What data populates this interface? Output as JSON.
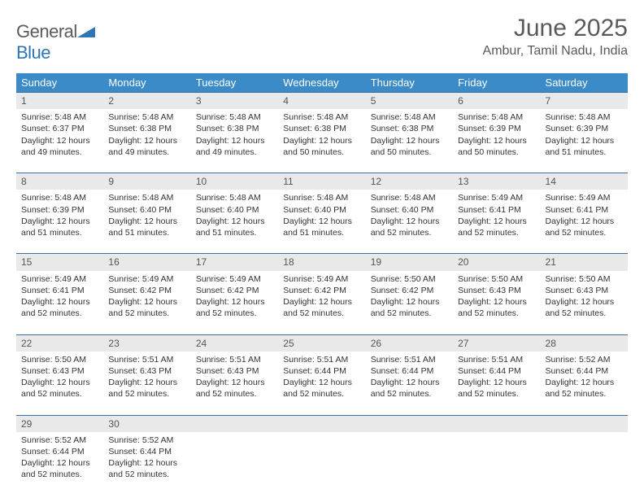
{
  "logo": {
    "word1": "General",
    "word2": "Blue"
  },
  "title": "June 2025",
  "location": "Ambur, Tamil Nadu, India",
  "colors": {
    "header_bg": "#3b8bc9",
    "header_text": "#ffffff",
    "row_border": "#3b6fa0",
    "daynum_bg": "#e9e9e9",
    "text": "#333333",
    "title_text": "#5a5a5a",
    "logo_blue": "#2e75b6"
  },
  "weekdays": [
    "Sunday",
    "Monday",
    "Tuesday",
    "Wednesday",
    "Thursday",
    "Friday",
    "Saturday"
  ],
  "weeks": [
    [
      {
        "n": "1",
        "sr": "Sunrise: 5:48 AM",
        "ss": "Sunset: 6:37 PM",
        "d1": "Daylight: 12 hours",
        "d2": "and 49 minutes."
      },
      {
        "n": "2",
        "sr": "Sunrise: 5:48 AM",
        "ss": "Sunset: 6:38 PM",
        "d1": "Daylight: 12 hours",
        "d2": "and 49 minutes."
      },
      {
        "n": "3",
        "sr": "Sunrise: 5:48 AM",
        "ss": "Sunset: 6:38 PM",
        "d1": "Daylight: 12 hours",
        "d2": "and 49 minutes."
      },
      {
        "n": "4",
        "sr": "Sunrise: 5:48 AM",
        "ss": "Sunset: 6:38 PM",
        "d1": "Daylight: 12 hours",
        "d2": "and 50 minutes."
      },
      {
        "n": "5",
        "sr": "Sunrise: 5:48 AM",
        "ss": "Sunset: 6:38 PM",
        "d1": "Daylight: 12 hours",
        "d2": "and 50 minutes."
      },
      {
        "n": "6",
        "sr": "Sunrise: 5:48 AM",
        "ss": "Sunset: 6:39 PM",
        "d1": "Daylight: 12 hours",
        "d2": "and 50 minutes."
      },
      {
        "n": "7",
        "sr": "Sunrise: 5:48 AM",
        "ss": "Sunset: 6:39 PM",
        "d1": "Daylight: 12 hours",
        "d2": "and 51 minutes."
      }
    ],
    [
      {
        "n": "8",
        "sr": "Sunrise: 5:48 AM",
        "ss": "Sunset: 6:39 PM",
        "d1": "Daylight: 12 hours",
        "d2": "and 51 minutes."
      },
      {
        "n": "9",
        "sr": "Sunrise: 5:48 AM",
        "ss": "Sunset: 6:40 PM",
        "d1": "Daylight: 12 hours",
        "d2": "and 51 minutes."
      },
      {
        "n": "10",
        "sr": "Sunrise: 5:48 AM",
        "ss": "Sunset: 6:40 PM",
        "d1": "Daylight: 12 hours",
        "d2": "and 51 minutes."
      },
      {
        "n": "11",
        "sr": "Sunrise: 5:48 AM",
        "ss": "Sunset: 6:40 PM",
        "d1": "Daylight: 12 hours",
        "d2": "and 51 minutes."
      },
      {
        "n": "12",
        "sr": "Sunrise: 5:48 AM",
        "ss": "Sunset: 6:40 PM",
        "d1": "Daylight: 12 hours",
        "d2": "and 52 minutes."
      },
      {
        "n": "13",
        "sr": "Sunrise: 5:49 AM",
        "ss": "Sunset: 6:41 PM",
        "d1": "Daylight: 12 hours",
        "d2": "and 52 minutes."
      },
      {
        "n": "14",
        "sr": "Sunrise: 5:49 AM",
        "ss": "Sunset: 6:41 PM",
        "d1": "Daylight: 12 hours",
        "d2": "and 52 minutes."
      }
    ],
    [
      {
        "n": "15",
        "sr": "Sunrise: 5:49 AM",
        "ss": "Sunset: 6:41 PM",
        "d1": "Daylight: 12 hours",
        "d2": "and 52 minutes."
      },
      {
        "n": "16",
        "sr": "Sunrise: 5:49 AM",
        "ss": "Sunset: 6:42 PM",
        "d1": "Daylight: 12 hours",
        "d2": "and 52 minutes."
      },
      {
        "n": "17",
        "sr": "Sunrise: 5:49 AM",
        "ss": "Sunset: 6:42 PM",
        "d1": "Daylight: 12 hours",
        "d2": "and 52 minutes."
      },
      {
        "n": "18",
        "sr": "Sunrise: 5:49 AM",
        "ss": "Sunset: 6:42 PM",
        "d1": "Daylight: 12 hours",
        "d2": "and 52 minutes."
      },
      {
        "n": "19",
        "sr": "Sunrise: 5:50 AM",
        "ss": "Sunset: 6:42 PM",
        "d1": "Daylight: 12 hours",
        "d2": "and 52 minutes."
      },
      {
        "n": "20",
        "sr": "Sunrise: 5:50 AM",
        "ss": "Sunset: 6:43 PM",
        "d1": "Daylight: 12 hours",
        "d2": "and 52 minutes."
      },
      {
        "n": "21",
        "sr": "Sunrise: 5:50 AM",
        "ss": "Sunset: 6:43 PM",
        "d1": "Daylight: 12 hours",
        "d2": "and 52 minutes."
      }
    ],
    [
      {
        "n": "22",
        "sr": "Sunrise: 5:50 AM",
        "ss": "Sunset: 6:43 PM",
        "d1": "Daylight: 12 hours",
        "d2": "and 52 minutes."
      },
      {
        "n": "23",
        "sr": "Sunrise: 5:51 AM",
        "ss": "Sunset: 6:43 PM",
        "d1": "Daylight: 12 hours",
        "d2": "and 52 minutes."
      },
      {
        "n": "24",
        "sr": "Sunrise: 5:51 AM",
        "ss": "Sunset: 6:43 PM",
        "d1": "Daylight: 12 hours",
        "d2": "and 52 minutes."
      },
      {
        "n": "25",
        "sr": "Sunrise: 5:51 AM",
        "ss": "Sunset: 6:44 PM",
        "d1": "Daylight: 12 hours",
        "d2": "and 52 minutes."
      },
      {
        "n": "26",
        "sr": "Sunrise: 5:51 AM",
        "ss": "Sunset: 6:44 PM",
        "d1": "Daylight: 12 hours",
        "d2": "and 52 minutes."
      },
      {
        "n": "27",
        "sr": "Sunrise: 5:51 AM",
        "ss": "Sunset: 6:44 PM",
        "d1": "Daylight: 12 hours",
        "d2": "and 52 minutes."
      },
      {
        "n": "28",
        "sr": "Sunrise: 5:52 AM",
        "ss": "Sunset: 6:44 PM",
        "d1": "Daylight: 12 hours",
        "d2": "and 52 minutes."
      }
    ],
    [
      {
        "n": "29",
        "sr": "Sunrise: 5:52 AM",
        "ss": "Sunset: 6:44 PM",
        "d1": "Daylight: 12 hours",
        "d2": "and 52 minutes."
      },
      {
        "n": "30",
        "sr": "Sunrise: 5:52 AM",
        "ss": "Sunset: 6:44 PM",
        "d1": "Daylight: 12 hours",
        "d2": "and 52 minutes."
      },
      {
        "empty": true
      },
      {
        "empty": true
      },
      {
        "empty": true
      },
      {
        "empty": true
      },
      {
        "empty": true
      }
    ]
  ]
}
